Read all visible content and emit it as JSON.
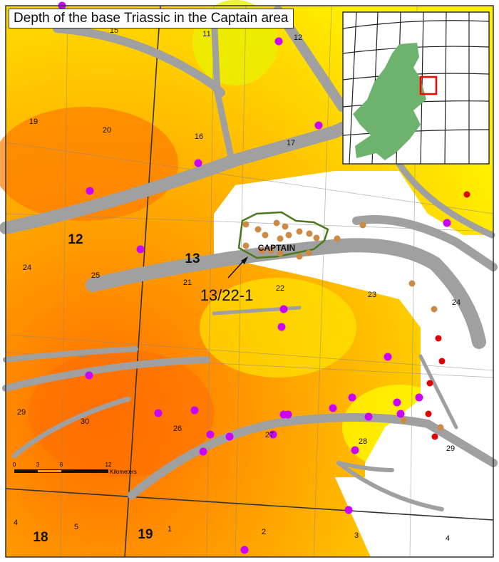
{
  "title": "Depth of the base Triassic in the Captain area",
  "field_label": "CAPTAIN",
  "well_label": "13/22-1",
  "quadrant_labels": [
    "12",
    "13",
    "18",
    "19"
  ],
  "block_labels": [
    "15",
    "11",
    "12",
    "19",
    "20",
    "16",
    "17",
    "24",
    "25",
    "21",
    "22",
    "23",
    "24",
    "29",
    "30",
    "26",
    "27",
    "28",
    "29",
    "4",
    "5",
    "1",
    "2",
    "3",
    "4"
  ],
  "scale_bar": {
    "ticks": [
      "0",
      "3",
      "6",
      "12"
    ],
    "unit": "Kilometers"
  },
  "colors": {
    "deep": "#ff6a00",
    "mid": "#ffa500",
    "shallow": "#ffff00",
    "fault": "#a0a0a0",
    "well": "#cc00ff",
    "field_well": "#cd8a45",
    "red_well": "#e00000",
    "field_outline": "#4a7a1e",
    "land": "#6db36d",
    "inset_box": "#ff0000"
  }
}
